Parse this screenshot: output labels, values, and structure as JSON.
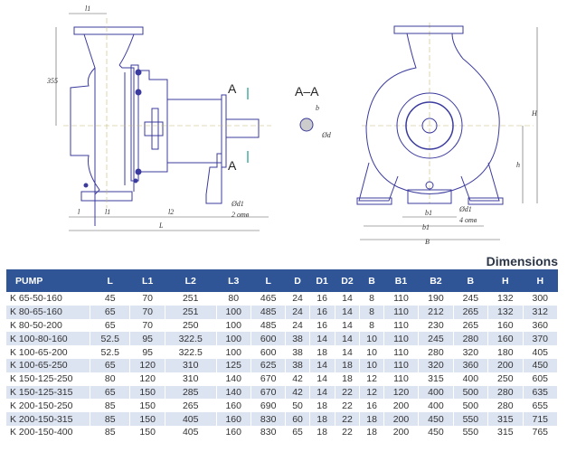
{
  "drawing": {
    "side_view": {
      "dim_l1_top": "l1",
      "dim_355": "355",
      "section_mark_top": "A",
      "section_mark_bottom": "A",
      "dim_l": "l",
      "dim_l1": "l1",
      "dim_l2": "l2",
      "dim_hole": "Ød1",
      "dim_holes_count": "2 отв",
      "dim_L": "L"
    },
    "section": {
      "title": "A–A",
      "dim_b": "b",
      "dim_d": "Ød"
    },
    "front_view": {
      "dim_H": "H",
      "dim_h": "h",
      "dim_b1": "b1",
      "dim_b2": "b1",
      "dim_hole": "Ød1",
      "dim_holes_count": "4 отв",
      "dim_B": "B"
    },
    "line_color": "#3b3b9e"
  },
  "table": {
    "title": "Dimensions",
    "header_color": "#2f5597",
    "alt_row_color": "#dce3f1",
    "columns": [
      "PUMP",
      "L",
      "L1",
      "L2",
      "L3",
      "L",
      "D",
      "D1",
      "D2",
      "B",
      "B1",
      "B2",
      "B",
      "H",
      "H"
    ],
    "rows": [
      [
        "K 65-50-160",
        "45",
        "70",
        "251",
        "80",
        "465",
        "24",
        "16",
        "14",
        "8",
        "110",
        "190",
        "245",
        "132",
        "300"
      ],
      [
        "K 80-65-160",
        "65",
        "70",
        "251",
        "100",
        "485",
        "24",
        "16",
        "14",
        "8",
        "110",
        "212",
        "265",
        "132",
        "312"
      ],
      [
        "K 80-50-200",
        "65",
        "70",
        "250",
        "100",
        "485",
        "24",
        "16",
        "14",
        "8",
        "110",
        "230",
        "265",
        "160",
        "360"
      ],
      [
        "K 100-80-160",
        "52.5",
        "95",
        "322.5",
        "100",
        "600",
        "38",
        "14",
        "14",
        "10",
        "110",
        "245",
        "280",
        "160",
        "370"
      ],
      [
        "K 100-65-200",
        "52.5",
        "95",
        "322.5",
        "100",
        "600",
        "38",
        "18",
        "14",
        "10",
        "110",
        "280",
        "320",
        "180",
        "405"
      ],
      [
        "K 100-65-250",
        "65",
        "120",
        "310",
        "125",
        "625",
        "38",
        "14",
        "18",
        "10",
        "110",
        "320",
        "360",
        "200",
        "450"
      ],
      [
        "K 150-125-250",
        "80",
        "120",
        "310",
        "140",
        "670",
        "42",
        "14",
        "18",
        "12",
        "110",
        "315",
        "400",
        "250",
        "605"
      ],
      [
        "K 150-125-315",
        "65",
        "150",
        "285",
        "140",
        "670",
        "42",
        "14",
        "22",
        "12",
        "120",
        "400",
        "500",
        "280",
        "635"
      ],
      [
        "K 200-150-250",
        "85",
        "150",
        "265",
        "160",
        "690",
        "50",
        "18",
        "22",
        "16",
        "200",
        "400",
        "500",
        "280",
        "655"
      ],
      [
        "K 200-150-315",
        "85",
        "150",
        "405",
        "160",
        "830",
        "60",
        "18",
        "22",
        "18",
        "200",
        "450",
        "550",
        "315",
        "715"
      ],
      [
        "K 200-150-400",
        "85",
        "150",
        "405",
        "160",
        "830",
        "65",
        "18",
        "22",
        "18",
        "200",
        "450",
        "550",
        "315",
        "765"
      ]
    ]
  }
}
